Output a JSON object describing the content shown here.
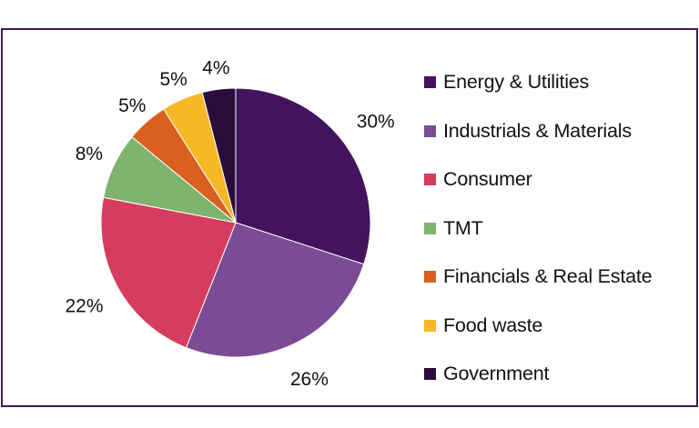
{
  "chart_data": {
    "type": "pie",
    "title": "",
    "start": "top",
    "direction": "clockwise",
    "legend_position": "right",
    "categories": [
      "Energy & Utilities",
      "Industrials & Materials",
      "Consumer",
      "TMT",
      "Financials & Real Estate",
      "Food waste",
      "Government"
    ],
    "values": [
      30,
      26,
      22,
      8,
      5,
      5,
      4
    ],
    "labels": [
      "30%",
      "26%",
      "22%",
      "8%",
      "5%",
      "5%",
      "4%"
    ],
    "colors": [
      "#44135e",
      "#7b4b94",
      "#d63c5e",
      "#80b46e",
      "#d9601f",
      "#f6b826",
      "#2a0d3c"
    ]
  }
}
